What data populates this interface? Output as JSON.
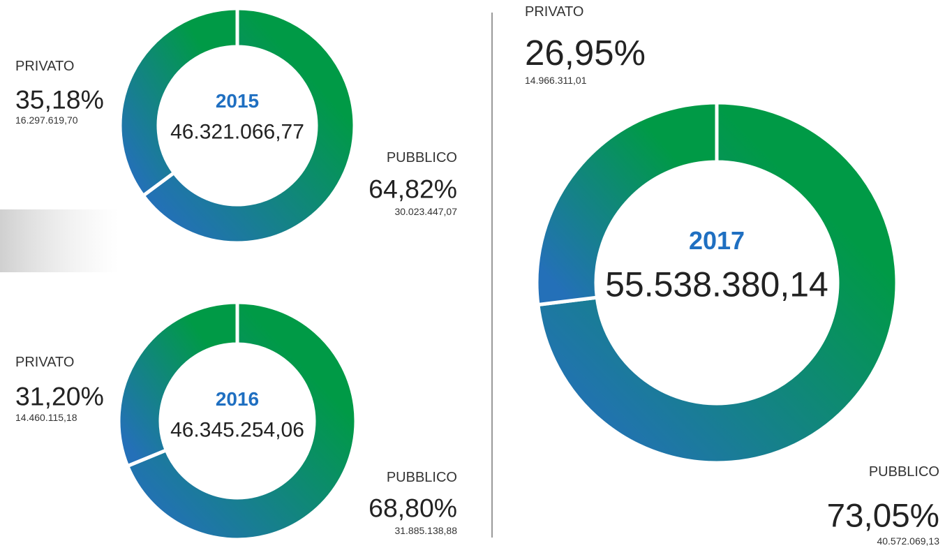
{
  "chart_data": [
    {
      "type": "donut",
      "title": "2015",
      "total": 46321066.77,
      "total_label": "46.321.066,77",
      "categories": [
        "PRIVATO",
        "PUBBLICO"
      ],
      "values": [
        35.18,
        64.82
      ],
      "value_labels": [
        "35,18%",
        "64,82%"
      ],
      "amounts": [
        16297619.7,
        30023447.07
      ],
      "amount_labels": [
        "16.297.619,70",
        "30.023.447,07"
      ],
      "gradient": [
        "#2470b8",
        "#009a46"
      ],
      "title_color": "#1f6fc1"
    },
    {
      "type": "donut",
      "title": "2016",
      "total": 46345254.06,
      "total_label": "46.345.254,06",
      "categories": [
        "PRIVATO",
        "PUBBLICO"
      ],
      "values": [
        31.2,
        68.8
      ],
      "value_labels": [
        "31,20%",
        "68,80%"
      ],
      "amounts": [
        14460115.18,
        31885138.88
      ],
      "amount_labels": [
        "14.460.115,18",
        "31.885.138,88"
      ],
      "gradient": [
        "#2470b8",
        "#009a46"
      ],
      "title_color": "#1f6fc1"
    },
    {
      "type": "donut",
      "title": "2017",
      "total": 55538380.14,
      "total_label": "55.538.380,14",
      "categories": [
        "PRIVATO",
        "PUBBLICO"
      ],
      "values": [
        26.95,
        73.05
      ],
      "value_labels": [
        "26,95%",
        "73,05%"
      ],
      "amounts": [
        14966311.01,
        40572069.13
      ],
      "amount_labels": [
        "14.966.311,01",
        "40.572.069,13"
      ],
      "gradient": [
        "#2470b8",
        "#009a46"
      ],
      "title_color": "#1f6fc1"
    }
  ]
}
